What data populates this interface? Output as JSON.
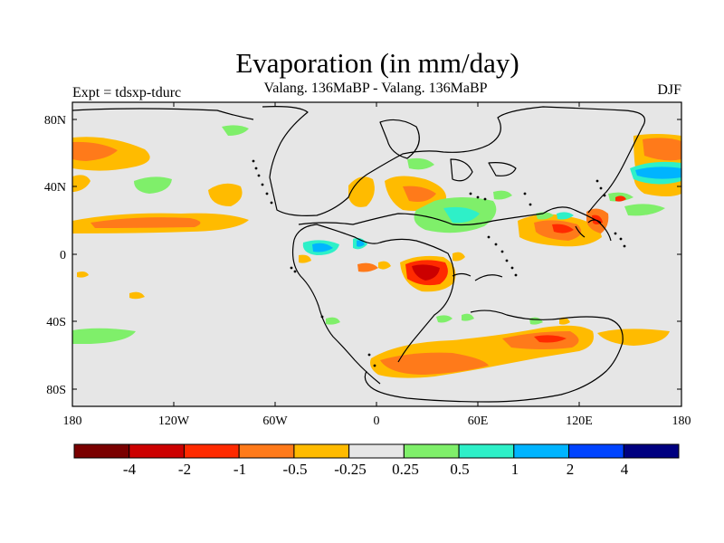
{
  "title": "Evaporation (in mm/day)",
  "subtitle": "Valang. 136MaBP - Valang.  136MaBP",
  "experiment_label": "Expt = tdsxp-tdurc",
  "season_label": "DJF",
  "map": {
    "lat_ticks": [
      "80N",
      "40N",
      "0",
      "40S",
      "80S"
    ],
    "lon_ticks": [
      "180",
      "120W",
      "60W",
      "0",
      "60E",
      "120E",
      "180"
    ],
    "ocean_color": "#e6e6e6"
  },
  "colorbar": {
    "colors": [
      "#7a0000",
      "#cc0000",
      "#ff2a00",
      "#ff7a1a",
      "#ffbb00",
      "#e6e6e6",
      "#7fef6a",
      "#2ef0c8",
      "#00b4ff",
      "#0044ff",
      "#000080"
    ],
    "labels": [
      "-4",
      "-2",
      "-1",
      "-0.5",
      "-0.25",
      "0.25",
      "0.5",
      "1",
      "2",
      "4"
    ]
  }
}
